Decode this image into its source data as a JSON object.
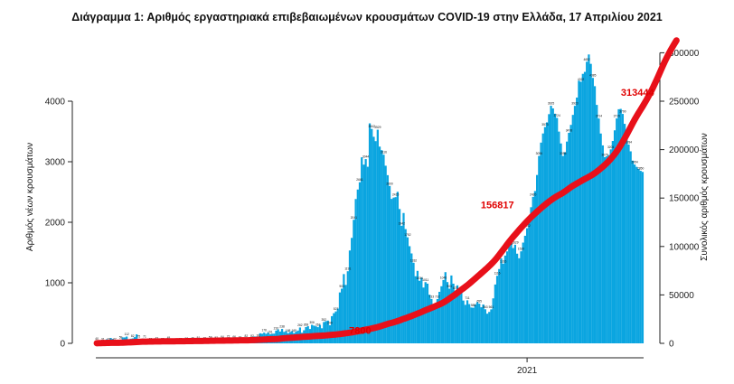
{
  "chart_data": {
    "type": "bar",
    "title": "Διάγραμμα 1: Αριθμός εργαστηριακά επιβεβαιωμένων κρουσμάτων COVID-19 στην Ελλάδα, 17 Απριλίου 2021",
    "ylabel_left": "Αριθμός νέων κρουσμάτων",
    "ylabel_right": "Συνολικός αριθμός κρουσμάτων",
    "x_tick_labels": [
      "2021"
    ],
    "ylim_left": [
      0,
      5000
    ],
    "yticks_left": [
      "0",
      "1000",
      "2000",
      "3000",
      "4000"
    ],
    "ylim_right": [
      0,
      312500
    ],
    "yticks_right": [
      "0",
      "50000",
      "100000",
      "150000",
      "200000",
      "250000",
      "300000"
    ],
    "grid": false,
    "series": [
      {
        "kind": "bar",
        "axis": "left",
        "color": "#0aa5e0",
        "values": [
          40,
          50,
          43,
          31,
          51,
          68,
          33,
          89,
          74,
          27,
          15,
          25,
          59,
          98,
          98,
          112,
          65,
          76,
          82,
          103,
          148,
          75,
          60,
          79,
          71,
          65,
          42,
          29,
          38,
          28,
          42,
          22,
          40,
          32,
          42,
          28,
          49,
          33,
          58,
          24,
          24,
          54,
          28,
          40,
          27,
          37,
          39,
          31,
          46,
          45,
          45,
          51,
          33,
          37,
          43,
          36,
          49,
          59,
          42,
          58,
          53,
          32,
          52,
          64,
          55,
          54,
          72,
          36,
          38,
          66,
          50,
          45,
          61,
          77,
          68,
          82,
          74,
          92,
          82,
          114,
          113,
          93,
          166,
          159,
          176,
          157,
          178,
          151,
          158,
          160,
          210,
          230,
          195,
          238,
          189,
          203,
          168,
          188,
          202,
          169,
          193,
          211,
          262,
          175,
          216,
          268,
          283,
          237,
          306,
          293,
          281,
          267,
          306,
          249,
          352,
          367,
          376,
          299,
          449,
          498,
          527,
          575,
          841,
          903,
          1144,
          965,
          1191,
          1534,
          1742,
          2041,
          2384,
          2541,
          2661,
          3073,
          2952,
          3044,
          2917,
          3634,
          3542,
          3412,
          3340,
          3529,
          3250,
          3192,
          3116,
          2934,
          2778,
          2600,
          2386,
          2408,
          2415,
          2503,
          2219,
          1942,
          2153,
          1887,
          1752,
          1605,
          1485,
          1332,
          1108,
          1197,
          1034,
          1085,
          922,
          1011,
          986,
          803,
          733,
          579,
          665,
          732,
          851,
          943,
          1046,
          1176,
          1012,
          903,
          1121,
          986,
          871,
          958,
          862,
          843,
          707,
          636,
          711,
          648,
          592,
          588,
          639,
          680,
          655,
          596,
          642,
          563,
          490,
          519,
          561,
          743,
          972,
          1116,
          1227,
          1405,
          1316,
          1450,
          1519,
          1606,
          1688,
          1574,
          1629,
          1481,
          1406,
          1520,
          1664,
          1777,
          1902,
          2103,
          2249,
          2420,
          2516,
          2781,
          3096,
          3316,
          3467,
          3573,
          3650,
          3786,
          3925,
          3881,
          3793,
          3724,
          3498,
          3302,
          3095,
          3157,
          3333,
          3478,
          3609,
          3774,
          3923,
          4060,
          4339,
          4322,
          4452,
          4484,
          4652,
          4772,
          4617,
          4385,
          4248,
          3939,
          3714,
          3466,
          3270,
          3076,
          3089,
          3110,
          3204,
          3343,
          3519,
          3715,
          3867,
          3873,
          3790,
          3626,
          3447,
          3284,
          3172,
          3018,
          2954,
          2915,
          2880,
          2850,
          2832
        ]
      },
      {
        "kind": "line",
        "axis": "right",
        "color": "#e8101a",
        "values": [
          156,
          226,
          271,
          364,
          387,
          445,
          495,
          565,
          577,
          581,
          587,
          611,
          661,
          736,
          817,
          933,
          1007,
          1080,
          1178,
          1286,
          1415,
          1517,
          1620,
          1694,
          1730,
          1788,
          1830,
          1867,
          1897,
          1927,
          1963,
          1999,
          2028,
          2054,
          2084,
          2100,
          2112,
          2124,
          2129,
          2136,
          2161,
          2186,
          2211,
          2236,
          2259,
          2300,
          2325,
          2343,
          2370,
          2398,
          2416,
          2423,
          2462,
          2497,
          2531,
          2561,
          2595,
          2633,
          2676,
          2710,
          2749,
          2787,
          2804,
          2811,
          2838,
          2869,
          2896,
          2925,
          2969,
          3008,
          3042,
          3076,
          3100,
          3118,
          3140,
          3161,
          3189,
          3237,
          3320,
          3412,
          3496,
          3601,
          3686,
          3787,
          3917,
          4012,
          4158,
          4233,
          4316,
          4370,
          4445,
          4584,
          4804,
          5077,
          5283,
          5416,
          5551,
          5669,
          5841,
          5976,
          6168,
          6286,
          6434,
          6595,
          6788,
          6916,
          7043,
          7160,
          7283,
          7437,
          7552,
          7686,
          7827,
          7975,
          8099,
          8217,
          8421,
          8591,
          8810,
          8985,
          9131,
          9373,
          9588,
          9835,
          10149,
          10416,
          10678,
          10991,
          11258,
          11663,
          12064,
          12428,
          12790,
          13209,
          13720,
          14117,
          14467,
          14892,
          15317,
          15815,
          16276,
          16782,
          17394,
          18037,
          18711,
          19370,
          20044,
          20632,
          21135,
          21650,
          22300,
          22977,
          23694,
          24524,
          25278,
          25891,
          26701,
          27463,
          28200,
          29050,
          29862,
          30716,
          31496,
          32363,
          33312,
          34173,
          35025,
          35820,
          36709,
          37495,
          38393,
          39306,
          40122,
          41082,
          42187,
          43364,
          44762,
          46217,
          47640,
          49026,
          50471,
          52214,
          53763,
          55279,
          56775,
          58321,
          59936,
          61655,
          63391,
          65154,
          66975,
          68769,
          70589,
          72359,
          74152,
          76012,
          77839,
          79770,
          81774,
          83915,
          86181,
          88661,
          91262,
          93947,
          96644,
          99383,
          102133,
          104783,
          107385,
          109884,
          112240,
          114638,
          116962,
          119299,
          121589,
          123825,
          126010,
          128146,
          130208,
          132171,
          134066,
          135935,
          137796,
          139596,
          141331,
          143019,
          144671,
          146309,
          147867,
          149304,
          150668,
          151924,
          153094,
          154239,
          155400,
          156817,
          158326,
          159800,
          161245,
          162614,
          163846,
          165052,
          166229,
          167387,
          168519,
          169701,
          170801,
          171904,
          173038,
          174284,
          175722,
          177229,
          178845,
          180531,
          182279,
          184109,
          186064,
          188187,
          190437,
          192843,
          195374,
          198164,
          201231,
          204556,
          208039,
          211627,
          215412,
          219347,
          223244,
          227136,
          230940,
          234476,
          237927,
          241191,
          244520,
          248001,
          251562,
          255258,
          259058,
          263107,
          267447,
          271891,
          276443,
          281149,
          285791,
          290269,
          294541,
          298480,
          302291,
          305928,
          309392,
          312720
        ]
      }
    ],
    "annotations": [
      "7800",
      "156817",
      "313444"
    ]
  }
}
